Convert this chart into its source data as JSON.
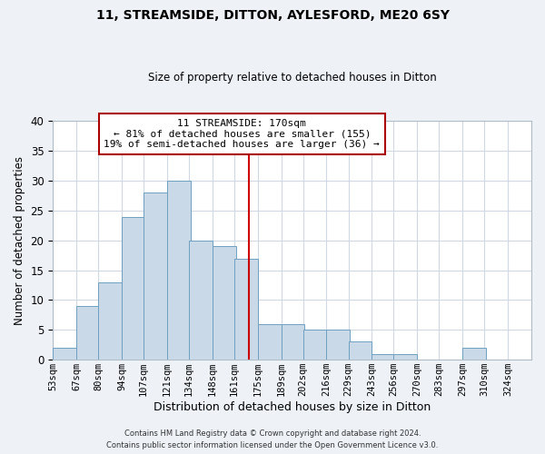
{
  "title": "11, STREAMSIDE, DITTON, AYLESFORD, ME20 6SY",
  "subtitle": "Size of property relative to detached houses in Ditton",
  "xlabel": "Distribution of detached houses by size in Ditton",
  "ylabel": "Number of detached properties",
  "bin_labels": [
    "53sqm",
    "67sqm",
    "80sqm",
    "94sqm",
    "107sqm",
    "121sqm",
    "134sqm",
    "148sqm",
    "161sqm",
    "175sqm",
    "189sqm",
    "202sqm",
    "216sqm",
    "229sqm",
    "243sqm",
    "256sqm",
    "270sqm",
    "283sqm",
    "297sqm",
    "310sqm",
    "324sqm"
  ],
  "bin_edges": [
    53,
    67,
    80,
    94,
    107,
    121,
    134,
    148,
    161,
    175,
    189,
    202,
    216,
    229,
    243,
    256,
    270,
    283,
    297,
    310,
    324
  ],
  "counts": [
    2,
    9,
    13,
    24,
    28,
    30,
    20,
    19,
    17,
    6,
    6,
    5,
    5,
    3,
    1,
    1,
    0,
    0,
    2,
    0,
    0
  ],
  "bar_color": "#c9d9e8",
  "bar_edgecolor": "#6fa0c0",
  "grid_color": "#d0d8e4",
  "reference_line_x": 170,
  "reference_line_color": "#cc0000",
  "annotation_text": "11 STREAMSIDE: 170sqm\n← 81% of detached houses are smaller (155)\n19% of semi-detached houses are larger (36) →",
  "annotation_box_edgecolor": "#aa0000",
  "ylim": [
    0,
    40
  ],
  "yticks": [
    0,
    5,
    10,
    15,
    20,
    25,
    30,
    35,
    40
  ],
  "footer_line1": "Contains HM Land Registry data © Crown copyright and database right 2024.",
  "footer_line2": "Contains public sector information licensed under the Open Government Licence v3.0.",
  "bg_color": "#eef2f7",
  "plot_bg_color": "#ffffff"
}
